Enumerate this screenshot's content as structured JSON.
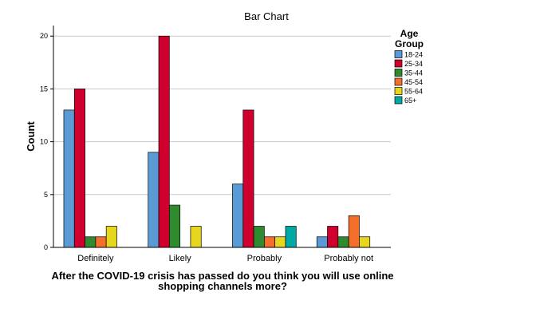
{
  "chart_data": {
    "type": "bar",
    "title": "Bar Chart",
    "xlabel_lines": [
      "After the COVID-19 crisis has passed do you think you will use online",
      "shopping channels more?"
    ],
    "ylabel": "Count",
    "categories": [
      "Definitely",
      "Likely",
      "Probably",
      "Probably not"
    ],
    "ylim": [
      0,
      21
    ],
    "yticks": [
      0,
      5,
      10,
      15,
      20
    ],
    "grid": true,
    "legend": {
      "title_lines": [
        "Age",
        "Group"
      ],
      "position": "right"
    },
    "series": [
      {
        "name": "18-24",
        "color": "#5b9bd5",
        "values": [
          13,
          9,
          6,
          1
        ]
      },
      {
        "name": "25-34",
        "color": "#d0002e",
        "values": [
          15,
          20,
          13,
          2
        ]
      },
      {
        "name": "35-44",
        "color": "#2e8b2e",
        "values": [
          1,
          4,
          2,
          1
        ]
      },
      {
        "name": "45-54",
        "color": "#f36f2b",
        "values": [
          1,
          0,
          1,
          3
        ]
      },
      {
        "name": "55-64",
        "color": "#e6d620",
        "values": [
          2,
          2,
          1,
          1
        ]
      },
      {
        "name": "65+",
        "color": "#00a9a5",
        "values": [
          0,
          0,
          2,
          0
        ]
      }
    ]
  }
}
